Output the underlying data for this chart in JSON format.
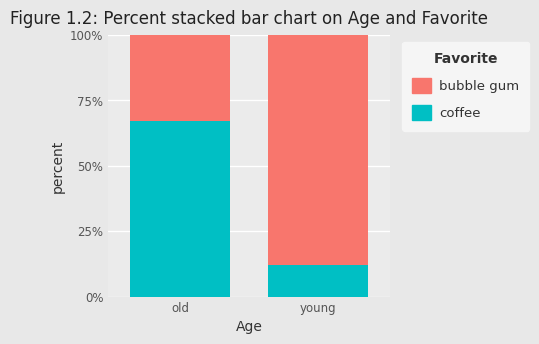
{
  "title": "Figure 1.2: Percent stacked bar chart on Age and Favorite",
  "categories": [
    "old",
    "young"
  ],
  "coffee_values": [
    0.67,
    0.12
  ],
  "bubblegum_values": [
    0.33,
    0.88
  ],
  "coffee_color": "#00BFC4",
  "bubblegum_color": "#F8766D",
  "figure_background": "#E8E8E8",
  "panel_background": "#EBEBEB",
  "legend_background": "#F5F5F5",
  "grid_color": "#FFFFFF",
  "xlabel": "Age",
  "ylabel": "percent",
  "yticks": [
    0,
    0.25,
    0.5,
    0.75,
    1.0
  ],
  "ytick_labels": [
    "0%",
    "25%",
    "50%",
    "75%",
    "100%"
  ],
  "legend_title": "Favorite",
  "legend_labels": [
    "bubble gum",
    "coffee"
  ],
  "bar_width": 0.72,
  "title_fontsize": 12,
  "axis_label_fontsize": 10,
  "tick_fontsize": 8.5,
  "legend_fontsize": 9.5
}
